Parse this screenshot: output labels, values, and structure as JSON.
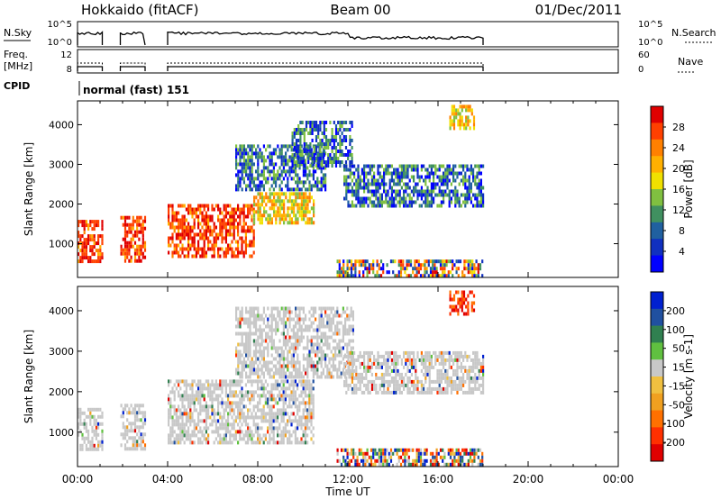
{
  "header": {
    "station": "Hokkaido (fitACF)",
    "beam": "Beam 00",
    "date": "01/Dec/2011"
  },
  "strips": {
    "nsky": {
      "label": "N.Sky",
      "ticks": [
        "10^5",
        "10^0"
      ],
      "right_ticks": [
        "10^5",
        "10^0"
      ],
      "right_label": "N.Search"
    },
    "freq": {
      "label_line1": "Freq.",
      "label_line2": "[MHz]",
      "ticks": [
        "12",
        "8"
      ],
      "right_ticks": [
        "60",
        "0"
      ],
      "right_label": "Nave"
    },
    "cpid": {
      "label": "CPID",
      "value": "normal (fast) 151"
    }
  },
  "chart_data": [
    {
      "type": "heatmap",
      "name": "power",
      "ylabel": "Slant Range [km]",
      "yticks": [
        "1000",
        "2000",
        "3000",
        "4000"
      ],
      "colorbar": {
        "label": "Power [dB]",
        "ticks": [
          "28",
          "24",
          "20",
          "16",
          "12",
          "8",
          "4"
        ],
        "colors": [
          "#e00000",
          "#ff4000",
          "#ff8000",
          "#ffb000",
          "#f0e000",
          "#80c040",
          "#409060",
          "#2060a0",
          "#1030c0",
          "#0000ff"
        ]
      },
      "bands": [
        {
          "t_start": 0.0,
          "t_end": 1.1,
          "r_start": 600,
          "r_end": 1600,
          "level": "high"
        },
        {
          "t_start": 1.9,
          "t_end": 3.0,
          "r_start": 600,
          "r_end": 1700,
          "level": "high"
        },
        {
          "t_start": 4.0,
          "t_end": 7.8,
          "r_start": 700,
          "r_end": 2000,
          "level": "high"
        },
        {
          "t_start": 7.8,
          "t_end": 10.5,
          "r_start": 1500,
          "r_end": 2300,
          "level": "mid"
        },
        {
          "t_start": 7.0,
          "t_end": 11.0,
          "r_start": 2400,
          "r_end": 3500,
          "level": "low"
        },
        {
          "t_start": 9.5,
          "t_end": 12.2,
          "r_start": 3000,
          "r_end": 4100,
          "level": "low"
        },
        {
          "t_start": 11.8,
          "t_end": 18.0,
          "r_start": 2000,
          "r_end": 3000,
          "level": "low"
        },
        {
          "t_start": 11.5,
          "t_end": 18.0,
          "r_start": 200,
          "r_end": 600,
          "level": "mixed"
        },
        {
          "t_start": 16.5,
          "t_end": 17.6,
          "r_start": 3900,
          "r_end": 4500,
          "level": "mid"
        }
      ]
    },
    {
      "type": "heatmap",
      "name": "velocity",
      "ylabel": "Slant Range [km]",
      "yticks": [
        "1000",
        "2000",
        "3000",
        "4000"
      ],
      "xlabel": "Time UT",
      "xticks": [
        "00:00",
        "04:00",
        "08:00",
        "12:00",
        "16:00",
        "20:00",
        "00:00"
      ],
      "colorbar": {
        "label": "Velocity [m s-1]",
        "ticks": [
          "200",
          "100",
          "50",
          "15",
          "-15",
          "-50",
          "-100",
          "-200"
        ],
        "colors": [
          "#0020d0",
          "#2050a0",
          "#308050",
          "#60c040",
          "#c8c8c8",
          "#f0c040",
          "#f0a020",
          "#ff7000",
          "#ff3000",
          "#e00000"
        ]
      },
      "bands": [
        {
          "t_start": 0.0,
          "t_end": 1.1,
          "r_start": 600,
          "r_end": 1600,
          "level": "ground"
        },
        {
          "t_start": 1.9,
          "t_end": 3.0,
          "r_start": 600,
          "r_end": 1700,
          "level": "ground"
        },
        {
          "t_start": 4.0,
          "t_end": 10.5,
          "r_start": 700,
          "r_end": 2300,
          "level": "ground"
        },
        {
          "t_start": 7.0,
          "t_end": 12.2,
          "r_start": 2400,
          "r_end": 4100,
          "level": "ground"
        },
        {
          "t_start": 11.8,
          "t_end": 18.0,
          "r_start": 2000,
          "r_end": 3000,
          "level": "ground"
        },
        {
          "t_start": 11.5,
          "t_end": 18.0,
          "r_start": 200,
          "r_end": 600,
          "level": "mixed"
        },
        {
          "t_start": 16.5,
          "t_end": 17.6,
          "r_start": 3900,
          "r_end": 4500,
          "level": "neg"
        }
      ]
    }
  ]
}
